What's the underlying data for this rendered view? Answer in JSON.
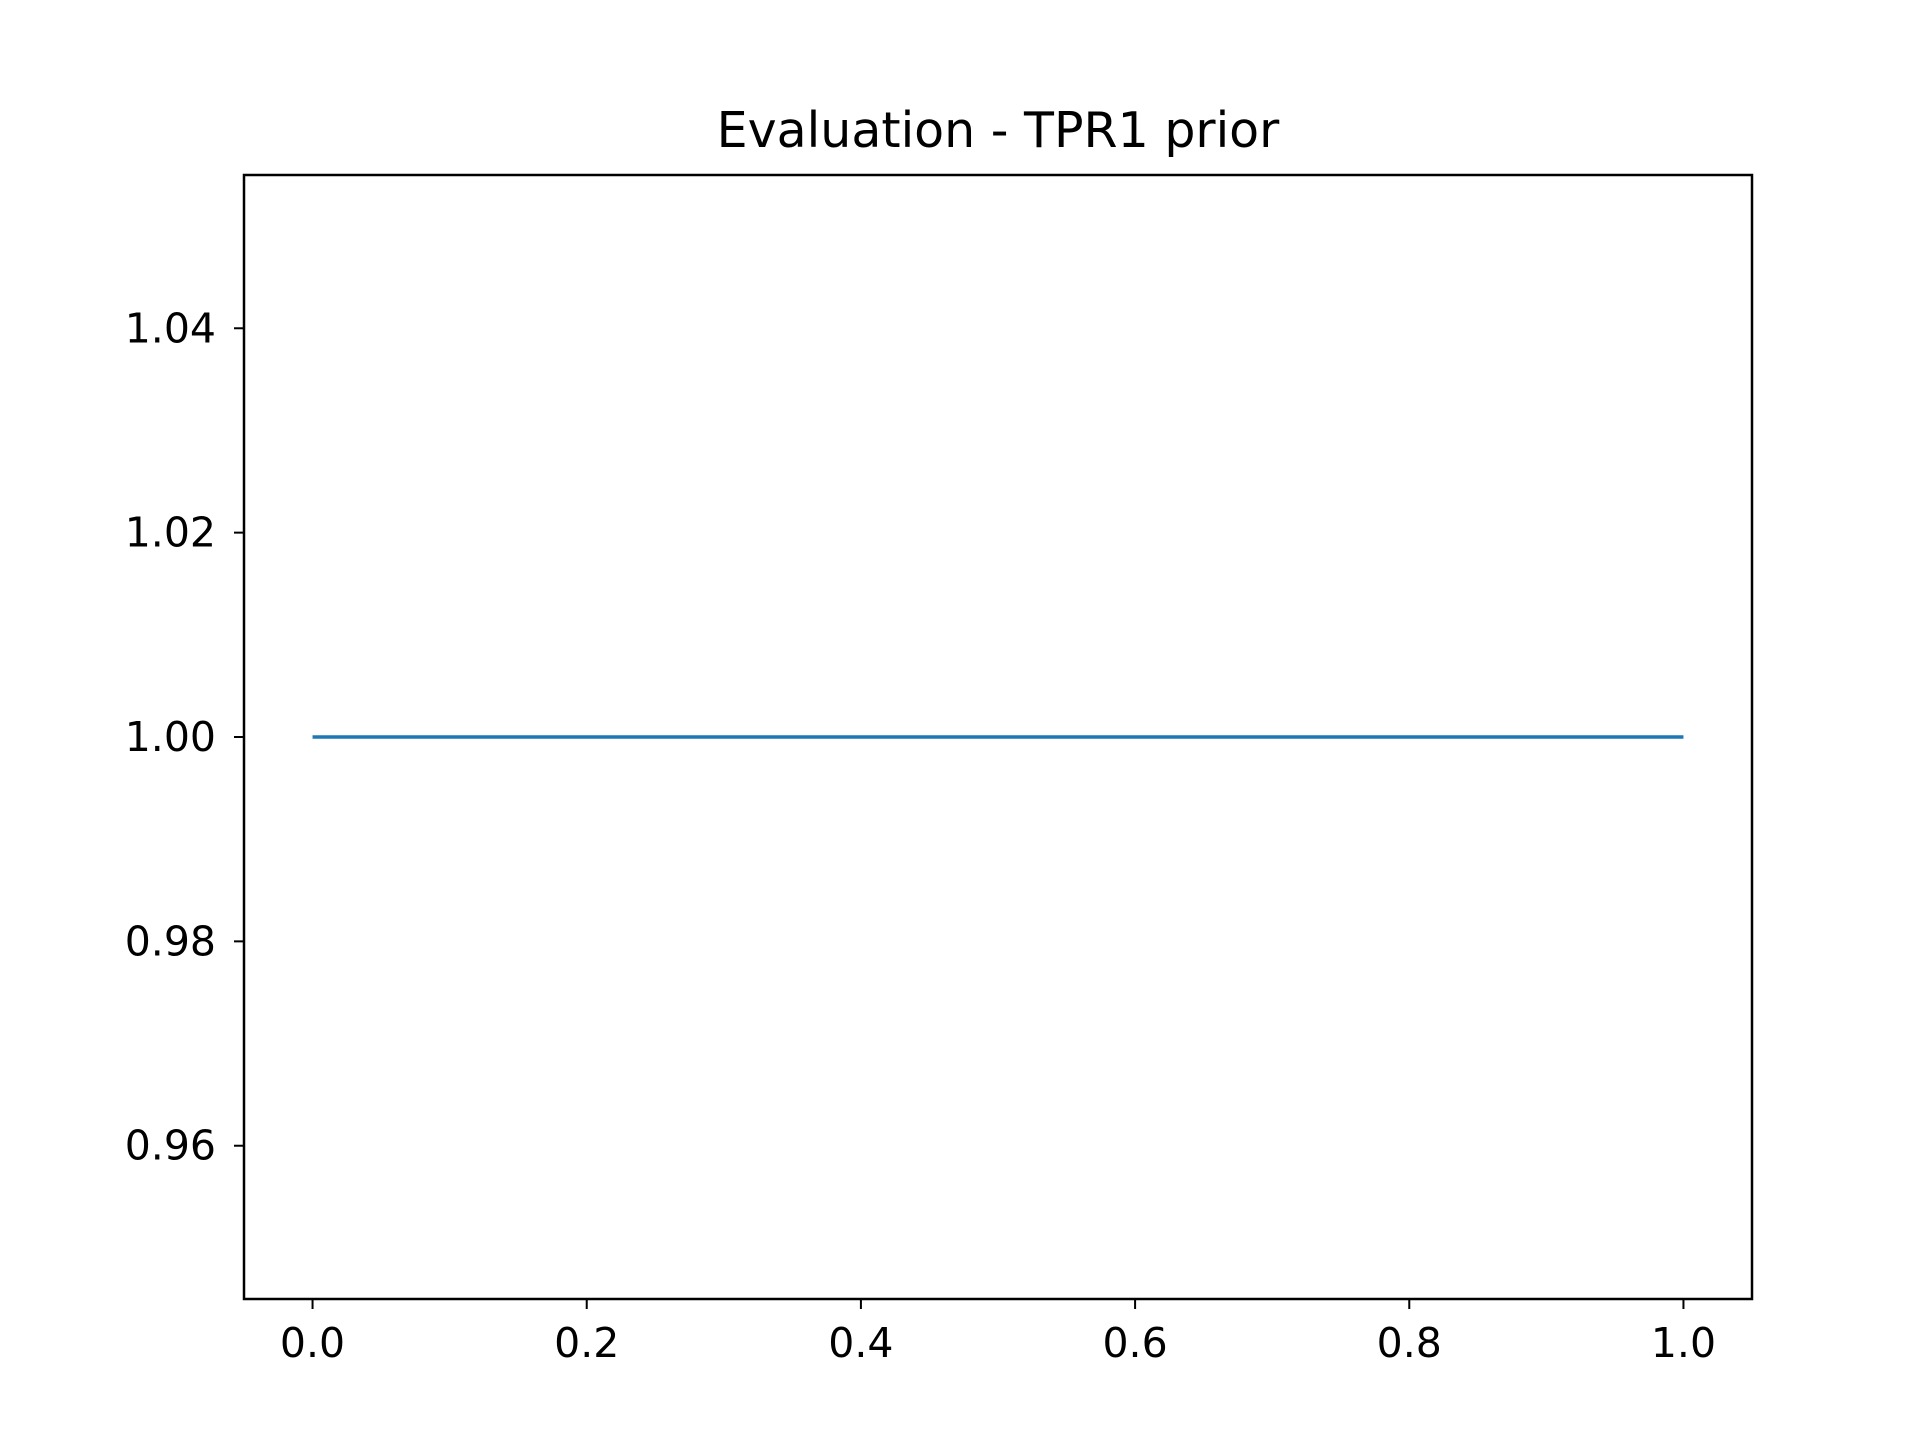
{
  "chart_data": {
    "type": "line",
    "title": "Evaluation - TPR1 prior",
    "xlabel": "",
    "ylabel": "",
    "xlim": [
      -0.05,
      1.05
    ],
    "ylim": [
      0.945,
      1.055
    ],
    "xticks": [
      0.0,
      0.2,
      0.4,
      0.6,
      0.8,
      1.0
    ],
    "xtick_labels": [
      "0.0",
      "0.2",
      "0.4",
      "0.6",
      "0.8",
      "1.0"
    ],
    "yticks": [
      0.96,
      0.98,
      1.0,
      1.02,
      1.04
    ],
    "ytick_labels": [
      "0.96",
      "0.98",
      "1.00",
      "1.02",
      "1.04"
    ],
    "grid": false,
    "legend": "none",
    "series": [
      {
        "color": "#1f77b4",
        "x": [
          0.0,
          1.0
        ],
        "y": [
          1.0,
          1.0
        ]
      }
    ]
  }
}
